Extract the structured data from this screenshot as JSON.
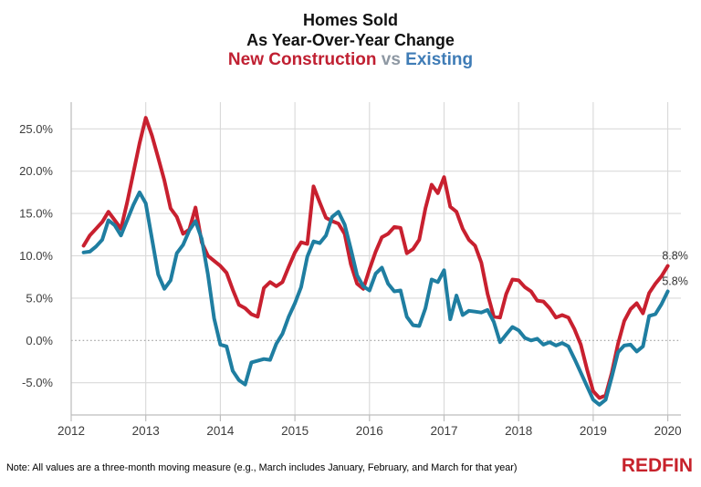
{
  "header": {
    "title_line1": "Homes Sold",
    "title_line2": "As Year-Over-Year Change",
    "series_a_label": "New Construction",
    "vs_label": "vs",
    "series_b_label": "Existing"
  },
  "colors": {
    "new_construction": "#c02032",
    "existing_line": "#1f7ea1",
    "existing_title": "#3f7cb6",
    "vs_gray": "#8e98a3",
    "grid": "#d9d9d9",
    "zero_line": "#a0a0a0",
    "axis": "#bdbdbd",
    "tick_text": "#3d3d3d",
    "end_label_text": "#333333",
    "brand_red": "#c7222b"
  },
  "chart_data": {
    "type": "line",
    "title": "Homes Sold As Year-Over-Year Change — New Construction vs Existing",
    "xlabel": "",
    "ylabel": "",
    "x_start": "2012-03",
    "x_interval": "monthly",
    "n_points": 95,
    "x_tick_labels": [
      "2012",
      "2013",
      "2014",
      "2015",
      "2016",
      "2017",
      "2018",
      "2019",
      "2020"
    ],
    "x_tick_years": [
      2012,
      2013,
      2014,
      2015,
      2016,
      2017,
      2018,
      2019,
      2020
    ],
    "y_tick_labels": [
      "25.0%",
      "20.0%",
      "15.0%",
      "10.0%",
      "5.0%",
      "0.0%",
      "-5.0%"
    ],
    "y_tick_values": [
      25,
      20,
      15,
      10,
      5,
      0,
      -5
    ],
    "ylim": [
      -8.6,
      27.4
    ],
    "grid": true,
    "zero_line_style": "dotted",
    "legend_position": "in-title",
    "series": [
      {
        "name": "New Construction",
        "color": "#c8202f",
        "end_label": "8.8%",
        "values": [
          11.2,
          12.4,
          13.2,
          14.0,
          15.2,
          14.2,
          13.2,
          16.3,
          19.8,
          23.3,
          26.3,
          24.2,
          21.6,
          18.9,
          15.6,
          14.6,
          12.6,
          13.1,
          15.7,
          11.6,
          10.0,
          9.4,
          8.8,
          8.0,
          6.0,
          4.2,
          3.8,
          3.1,
          2.8,
          6.2,
          6.9,
          6.4,
          6.9,
          8.7,
          10.4,
          11.6,
          11.4,
          18.2,
          16.3,
          14.5,
          14.1,
          13.8,
          12.6,
          9.0,
          6.7,
          6.1,
          8.4,
          10.5,
          12.2,
          12.6,
          13.4,
          13.3,
          10.3,
          10.8,
          11.9,
          15.6,
          18.4,
          17.4,
          19.3,
          15.8,
          15.2,
          13.2,
          11.9,
          11.2,
          9.2,
          5.5,
          2.8,
          2.7,
          5.5,
          7.2,
          7.1,
          6.3,
          5.8,
          4.7,
          4.6,
          3.8,
          2.7,
          3.0,
          2.7,
          1.3,
          -0.5,
          -3.4,
          -6.0,
          -6.8,
          -6.5,
          -3.8,
          -0.4,
          2.3,
          3.7,
          4.4,
          3.2,
          5.6,
          6.7,
          7.6,
          8.8
        ]
      },
      {
        "name": "Existing",
        "color": "#1f7ea1",
        "end_label": "5.8%",
        "values": [
          10.4,
          10.5,
          11.1,
          11.9,
          14.2,
          13.6,
          12.4,
          14.2,
          16.0,
          17.5,
          16.2,
          12.0,
          7.8,
          6.1,
          7.1,
          10.3,
          11.3,
          13.0,
          14.1,
          12.0,
          7.8,
          2.6,
          -0.5,
          -0.7,
          -3.6,
          -4.7,
          -5.2,
          -2.6,
          -2.4,
          -2.2,
          -2.3,
          -0.4,
          0.8,
          2.8,
          4.4,
          6.3,
          9.9,
          11.7,
          11.5,
          12.4,
          14.6,
          15.2,
          13.7,
          10.8,
          7.7,
          6.4,
          5.9,
          7.9,
          8.6,
          6.7,
          5.8,
          5.9,
          2.8,
          1.8,
          1.7,
          3.8,
          7.2,
          6.9,
          8.3,
          2.5,
          5.3,
          3.0,
          3.5,
          3.4,
          3.3,
          3.6,
          2.2,
          -0.2,
          0.7,
          1.6,
          1.2,
          0.3,
          0.0,
          0.2,
          -0.5,
          -0.2,
          -0.6,
          -0.3,
          -0.7,
          -2.2,
          -3.8,
          -5.4,
          -7.0,
          -7.6,
          -7.0,
          -4.3,
          -1.4,
          -0.6,
          -0.5,
          -1.3,
          -0.7,
          2.9,
          3.1,
          4.3,
          5.8
        ]
      }
    ]
  },
  "footer": {
    "note": "Note: All values are a three-month moving measure (e.g., March includes January, February, and March for that year)",
    "brand": "REDFIN"
  }
}
